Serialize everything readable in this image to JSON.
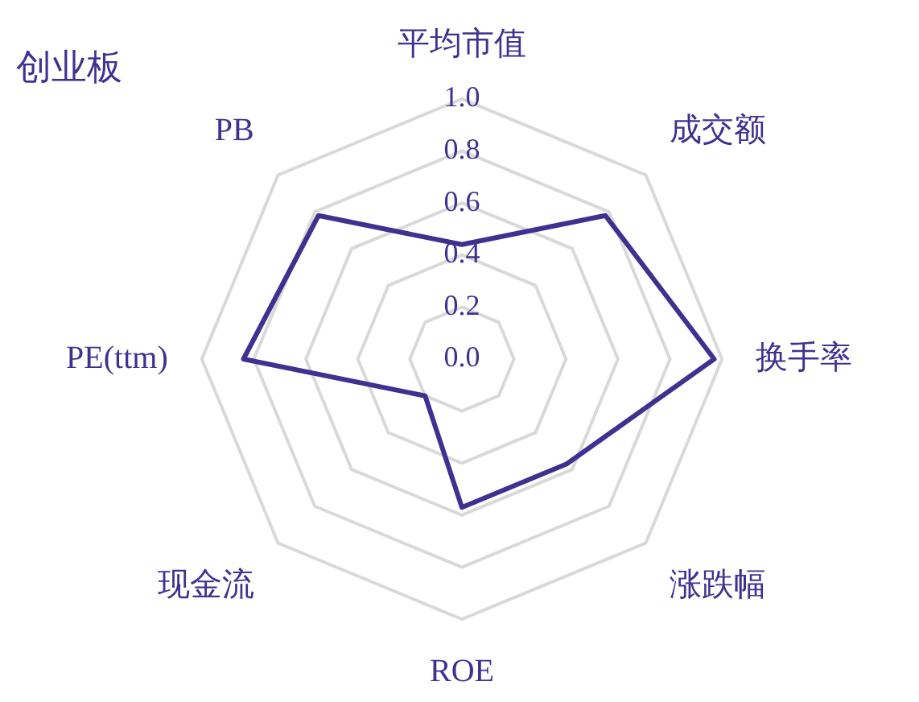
{
  "chart_data": {
    "type": "radar",
    "title": "创业板",
    "categories": [
      "平均市值",
      "成交额",
      "换手率",
      "涨跌幅",
      "ROE",
      "现金流",
      "PE(ttm)",
      "PB"
    ],
    "series": [
      {
        "color": "#3f3190",
        "values": [
          0.44,
          0.78,
          0.97,
          0.57,
          0.57,
          0.2,
          0.84,
          0.78
        ]
      }
    ],
    "ylim": [
      0,
      1
    ],
    "yticks": [
      {
        "value": 0,
        "label": "0.0"
      },
      {
        "value": 0.2,
        "label": "0.2"
      },
      {
        "value": 0.4,
        "label": "0.4"
      },
      {
        "value": 0.6,
        "label": "0.6"
      },
      {
        "value": 0.8,
        "label": "0.8"
      },
      {
        "value": 1,
        "label": "1.0"
      }
    ],
    "grid": true,
    "marker": "none",
    "legend": false
  }
}
